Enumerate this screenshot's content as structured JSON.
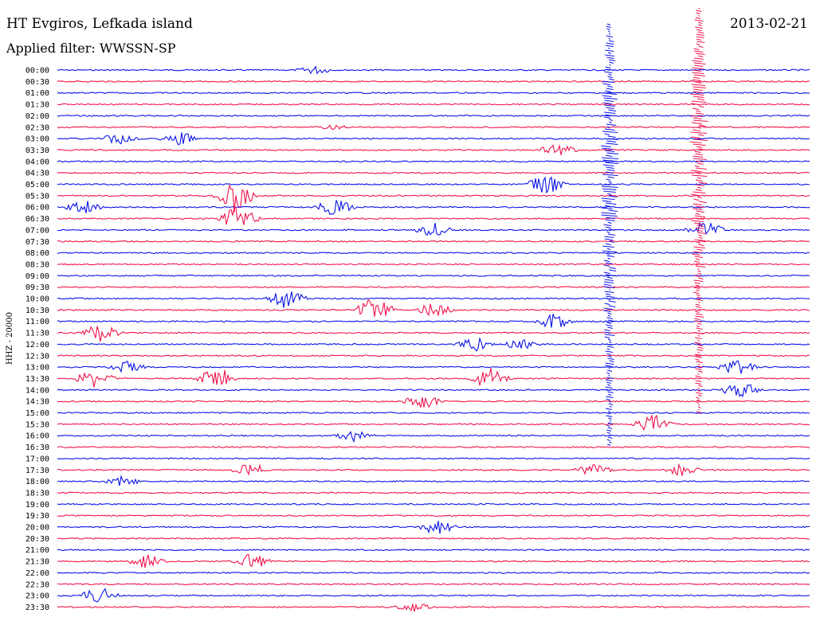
{
  "header": {
    "station": "HT Evgiros, Lefkada island",
    "filter": "Applied filter: WWSSN-SP",
    "date": "2013-02-21"
  },
  "colors": {
    "series_a": "#0a14e6",
    "series_b": "#f0144b"
  },
  "chart_data": {
    "type": "line",
    "ylabel": "HHZ - 20000",
    "row_labels": [
      "00:00",
      "00:30",
      "01:00",
      "01:30",
      "02:00",
      "02:30",
      "03:00",
      "03:30",
      "04:00",
      "04:30",
      "05:00",
      "05:30",
      "06:00",
      "06:30",
      "07:00",
      "07:30",
      "08:00",
      "08:30",
      "09:00",
      "09:30",
      "10:00",
      "10:30",
      "11:00",
      "11:30",
      "12:00",
      "12:30",
      "13:00",
      "13:30",
      "14:00",
      "14:30",
      "15:00",
      "15:30",
      "16:00",
      "16:30",
      "17:00",
      "17:30",
      "18:00",
      "18:30",
      "19:00",
      "19:30",
      "20:00",
      "20:30",
      "21:00",
      "21:30",
      "22:00",
      "22:30",
      "23:00",
      "23:30"
    ],
    "traces_per_row_minutes": 30,
    "color_pattern": [
      "series_a",
      "series_b"
    ],
    "grid": false
  }
}
